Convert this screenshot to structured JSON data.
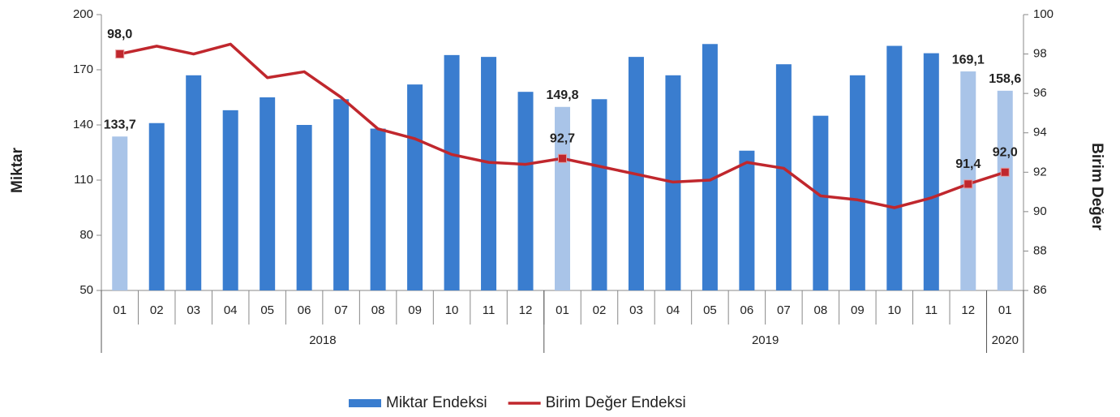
{
  "chart_data": {
    "type": "bar-line",
    "categories": [
      "01",
      "02",
      "03",
      "04",
      "05",
      "06",
      "07",
      "08",
      "09",
      "10",
      "11",
      "12",
      "01",
      "02",
      "03",
      "04",
      "05",
      "06",
      "07",
      "08",
      "09",
      "10",
      "11",
      "12",
      "01"
    ],
    "x_groups": [
      {
        "label": "2018",
        "span": 12
      },
      {
        "label": "2019",
        "span": 12
      },
      {
        "label": "2020",
        "span": 1
      }
    ],
    "ylabel": "Miktar",
    "y2label": "Birim Değer",
    "ylim": [
      50,
      200
    ],
    "yticks": [
      50,
      80,
      110,
      140,
      170,
      200
    ],
    "y2lim": [
      86,
      100
    ],
    "y2ticks": [
      86,
      88,
      90,
      92,
      94,
      96,
      98,
      100
    ],
    "legend": "bottom",
    "series": [
      {
        "name": "Miktar Endeksi",
        "type": "bar",
        "color": "#3a7dcf",
        "highlight_color": "#a9c4e8",
        "values": [
          133.7,
          141,
          167,
          148,
          155,
          140,
          154,
          138,
          162,
          178,
          177,
          158,
          149.8,
          154,
          177,
          167,
          184,
          126,
          173,
          145,
          167,
          183,
          179,
          169.1,
          158.6
        ],
        "value_labels": [
          "133,7",
          null,
          null,
          null,
          null,
          null,
          null,
          null,
          null,
          null,
          null,
          null,
          "149,8",
          null,
          null,
          null,
          null,
          null,
          null,
          null,
          null,
          null,
          null,
          "169,1",
          "158,6"
        ]
      },
      {
        "name": "Birim Değer Endeksi",
        "type": "line",
        "axis": "y2",
        "color": "#c0272d",
        "values": [
          98.0,
          98.4,
          98.0,
          98.5,
          96.8,
          97.1,
          95.8,
          94.2,
          93.7,
          92.9,
          92.5,
          92.4,
          92.7,
          92.3,
          91.9,
          91.5,
          91.6,
          92.5,
          92.2,
          90.8,
          90.6,
          90.2,
          90.7,
          91.4,
          92.0
        ],
        "value_labels": [
          "98,0",
          null,
          null,
          null,
          null,
          null,
          null,
          null,
          null,
          null,
          null,
          null,
          "92,7",
          null,
          null,
          null,
          null,
          null,
          null,
          null,
          null,
          null,
          null,
          "91,4",
          "92,0"
        ]
      }
    ]
  }
}
